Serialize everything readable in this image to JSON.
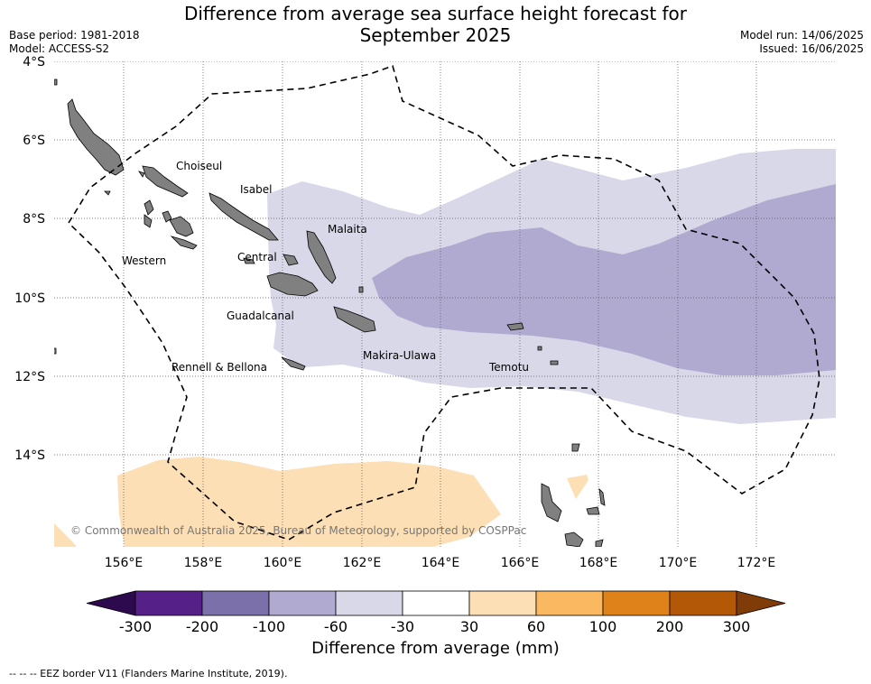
{
  "header": {
    "title_line1": "Difference from average sea surface height forecast for",
    "title_line2": "September 2025",
    "base_period": "Base period: 1981-2018",
    "model": "Model: ACCESS-S2",
    "model_run": "Model run: 14/06/2025",
    "issued": "Issued: 16/06/2025"
  },
  "map": {
    "lat_labels": [
      "4°S",
      "6°S",
      "8°S",
      "10°S",
      "12°S",
      "14°S"
    ],
    "lon_labels": [
      "156°E",
      "158°E",
      "160°E",
      "162°E",
      "164°E",
      "166°E",
      "168°E",
      "170°E",
      "172°E"
    ],
    "provinces": [
      "Choiseul",
      "Isabel",
      "Malaita",
      "Western",
      "Central",
      "Guadalcanal",
      "Makira-Ulawa",
      "Rennell & Bellona",
      "Temotu"
    ],
    "copyright": "© Commonwealth of Australia 2025, Bureau of Meteorology, supported by COSPPac",
    "colors": {
      "land": "#808080",
      "neg_30_60": "#d8d8e9",
      "neg_60_100": "#b0a9d0",
      "pos_30_60": "#fcdfb4",
      "eez": "#000000"
    }
  },
  "colorbar": {
    "ticks": [
      "-300",
      "-200",
      "-100",
      "-60",
      "-30",
      "30",
      "60",
      "100",
      "200",
      "300"
    ],
    "colors": [
      "#2d0a4e",
      "#562089",
      "#7c70ab",
      "#b0a9d0",
      "#d8d8e9",
      "#ffffff",
      "#fcdfb4",
      "#fab960",
      "#e0821a",
      "#b35806",
      "#7f3b08"
    ],
    "title": "Difference from average (mm)"
  },
  "footnote": "--  --  -- EEZ border V11 (Flanders Marine Institute, 2019)."
}
